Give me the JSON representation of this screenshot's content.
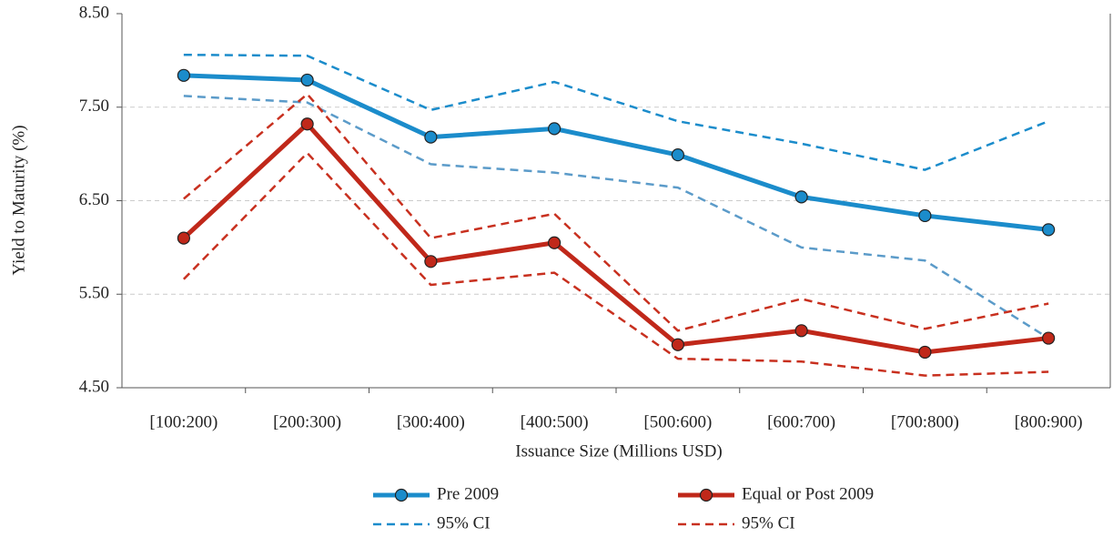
{
  "chart_data": {
    "type": "line",
    "x_label": "Issuance Size (Millions USD)",
    "y_label": "Yield to Maturity (%)",
    "categories": [
      "[100:200)",
      "[200:300)",
      "[300:400)",
      "[400:500)",
      "[500:600)",
      "[600:700)",
      "[700:800)",
      "[800:900)"
    ],
    "ylim": [
      4.5,
      8.5
    ],
    "yticks": [
      {
        "value": 4.5,
        "label": "4.50"
      },
      {
        "value": 5.5,
        "label": "5.50"
      },
      {
        "value": 6.5,
        "label": "6.50"
      },
      {
        "value": 7.5,
        "label": "7.50"
      },
      {
        "value": 8.5,
        "label": "8.50"
      }
    ],
    "grid": true,
    "series": [
      {
        "name": "Pre 2009",
        "color": "#1b8ccb",
        "marker": true,
        "values": [
          7.84,
          7.79,
          7.18,
          7.27,
          6.99,
          6.54,
          6.34,
          6.19
        ]
      },
      {
        "name": "95% CI",
        "color": "#1b8ccb",
        "lower_color": "#5b9bc9",
        "dash": true,
        "upper": [
          8.06,
          8.05,
          7.47,
          7.77,
          7.35,
          7.11,
          6.83,
          7.35
        ],
        "lower": [
          7.62,
          7.55,
          6.89,
          6.8,
          6.64,
          6.0,
          5.86,
          5.03
        ]
      },
      {
        "name": "Equal or Post 2009",
        "color": "#c0281a",
        "marker": true,
        "values": [
          6.1,
          7.32,
          5.85,
          6.05,
          4.96,
          5.11,
          4.88,
          5.03
        ]
      },
      {
        "name": "95% CI",
        "color": "#c8301f",
        "lower_color": "#c8301f",
        "dash": true,
        "upper": [
          6.52,
          7.64,
          6.1,
          6.36,
          5.11,
          5.45,
          5.13,
          5.4
        ],
        "lower": [
          5.66,
          7.01,
          5.6,
          5.73,
          4.81,
          4.78,
          4.63,
          4.67
        ]
      }
    ]
  }
}
